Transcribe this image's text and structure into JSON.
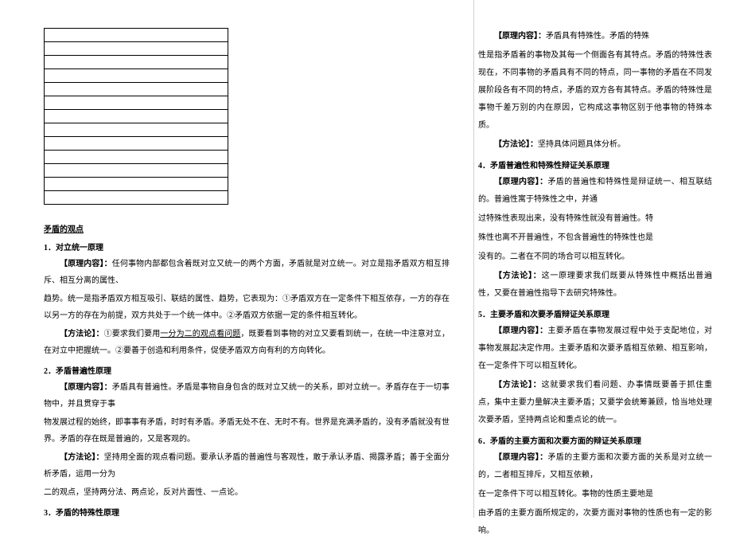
{
  "grid": {
    "rows": 13
  },
  "left": {
    "heading": "矛盾的观点",
    "s1_title": "1．对立统一原理",
    "s1_p1a": "【原理内容】：",
    "s1_p1b": "任何事物内部都包含着既对立又统一的两个方面，矛盾就是对立统一。对立是指矛盾双方相互排斥、相互分离的属性、",
    "s1_p2": "趋势。统一是指矛盾双方相互吸引、联结的属性、趋势，它表现为：①矛盾双方在一定条件下相互依存，一方的存在以另一方的存在为前提，双方共处于一个统一体中。②矛盾双方依据一定的条件相互转化。",
    "s1_p3a": "【方法论】：",
    "s1_p3b": "①要求我们要用",
    "s1_p3u": "一分为二的观点看问题",
    "s1_p3c": "，既要看到事物的对立又要看到统一，在统一中注意对立，在对立中把握统一。②要善于创造和利用条件，促使矛盾双方向有利的方向转化。",
    "s2_title": "2．矛盾普遍性原理",
    "s2_p1a": "【原理内容】：",
    "s2_p1b": "矛盾具有普遍性。矛盾是事物自身包含的既对立又统一的关系，即对立统一。矛盾存在于一切事物中，并且贯穿于事",
    "s2_p2": "物发展过程的始终，即事事有矛盾，时时有矛盾。矛盾无处不在、无时不有。世界是充满矛盾的，没有矛盾就没有世界。矛盾的存在既是普遍的，又是客观的。",
    "s2_p3a": "【方法论】：",
    "s2_p3b": "坚持用全面的观点看问题。要承认矛盾的普遍性与客观性，敢于承认矛盾、揭露矛盾；善于全面分析矛盾，运用一分为",
    "s2_p4": "二的观点，坚持两分法、两点论，反对片面性、一点论。",
    "s3_title": "3．矛盾的特殊性原理"
  },
  "right": {
    "r1a": "【原理内容】：",
    "r1b": "矛盾具有特殊性。矛盾的特殊",
    "r2": "性是指矛盾着的事物及其每一个侧面各有其特点。矛盾的特殊性表现在，不同事物的矛盾具有不同的特点，同一事物的矛盾在不同发展阶段各有不同的特点，矛盾的双方各有其特点。矛盾的特殊性是事物千差万别的内在原因，它构成这事物区别于他事物的特殊本质。",
    "r3a": "【方法论】：",
    "r3b": "坚持具体问题具体分析。",
    "r4_title": "4．矛盾普遍性和特殊性辩证关系原理",
    "r4a": "【原理内容】：",
    "r4b": "矛盾的普遍性和特殊性是辩证统一、相互联结的。普遍性寓于特殊性之中，并通",
    "r4c": "过特殊性表现出来，没有特殊性就没有普遍性。特",
    "r4d": "殊性也离不开普遍性，不包含普遍性的特殊性也是",
    "r4e": "没有的。二者在不同的场合可以相互转化。",
    "r4fa": "【方法论】：",
    "r4fb": "这一原理要求我们既要从特殊性中概括出普遍性，又要在普遍性指导下去研究特殊性。",
    "r5_title": "5．主要矛盾和次要矛盾辩证关系原理",
    "r5a": "【原理内容】：",
    "r5b": "主要矛盾在事物发展过程中处于支配地位，对事物发展起决定作用。主要矛盾和次要矛盾相互依赖、相互影响，在一定条件下可以相互转化。",
    "r5ca": "【方法论】：",
    "r5cb": "这就要求我们看问题、办事情既要善于抓住重点，集中主要力量解决主要矛盾；又要学会统筹兼顾，恰当地处理次要矛盾，坚持两点论和重点论的统一。",
    "r6_title": "6．矛盾的主要方面和次要方面的辩证关系原理",
    "r6a": "【原理内容】：",
    "r6b": "矛盾的主要方面和次要方面的关系是对立统一的，二者相互排斥，又相互依赖，",
    "r6c": "在一定条件下可以相互转化。事物的性质主要地是",
    "r6d": "由矛盾的主要方面所规定的，次要方面对事物的性质也有一定的影响。"
  }
}
